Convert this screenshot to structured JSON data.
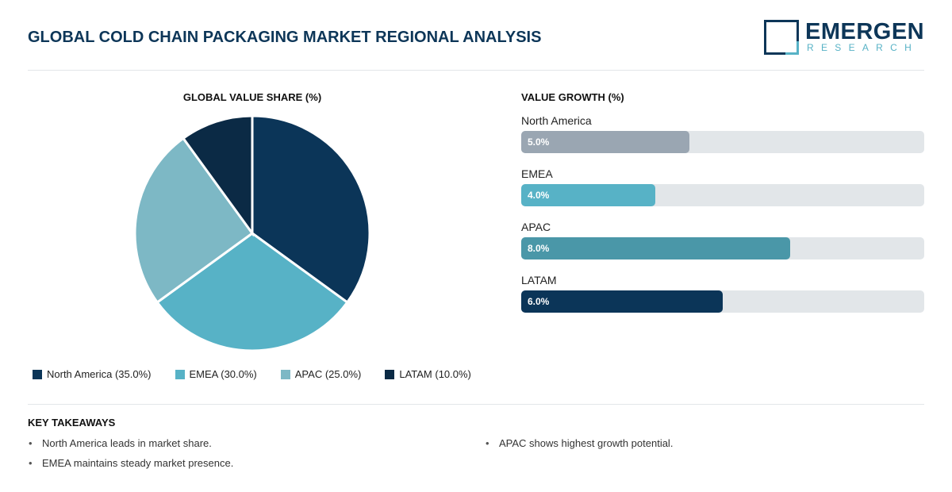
{
  "title": "GLOBAL COLD CHAIN PACKAGING MARKET REGIONAL ANALYSIS",
  "logo": {
    "line1": "EMERGEN",
    "line2": "RESEARCH"
  },
  "chart_data": [
    {
      "type": "pie",
      "title": "GLOBAL VALUE SHARE (%)",
      "legend_position": "bottom",
      "slices": [
        {
          "label": "North America (35.0%)",
          "name": "North America",
          "value": 35.0,
          "color": "#0b3558"
        },
        {
          "label": "EMEA (30.0%)",
          "name": "EMEA",
          "value": 30.0,
          "color": "#57b2c6"
        },
        {
          "label": "APAC (25.0%)",
          "name": "APAC",
          "value": 25.0,
          "color": "#7db8c5"
        },
        {
          "label": "LATAM (10.0%)",
          "name": "LATAM",
          "value": 10.0,
          "color": "#0b2a45"
        }
      ]
    },
    {
      "type": "bar",
      "orientation": "horizontal",
      "title": "VALUE GROWTH (%)",
      "xlim": [
        0,
        12
      ],
      "bars": [
        {
          "category": "North America",
          "value": 5.0,
          "label": "5.0%",
          "color": "#9aa6b2"
        },
        {
          "category": "EMEA",
          "value": 4.0,
          "label": "4.0%",
          "color": "#57b2c6"
        },
        {
          "category": "APAC",
          "value": 8.0,
          "label": "8.0%",
          "color": "#4a97a8"
        },
        {
          "category": "LATAM",
          "value": 6.0,
          "label": "6.0%",
          "color": "#0b3558"
        }
      ]
    }
  ],
  "takeaways": {
    "heading": "KEY TAKEAWAYS",
    "items": [
      "North America leads in market share.",
      "EMEA maintains steady market presence.",
      "APAC shows highest growth potential."
    ]
  }
}
